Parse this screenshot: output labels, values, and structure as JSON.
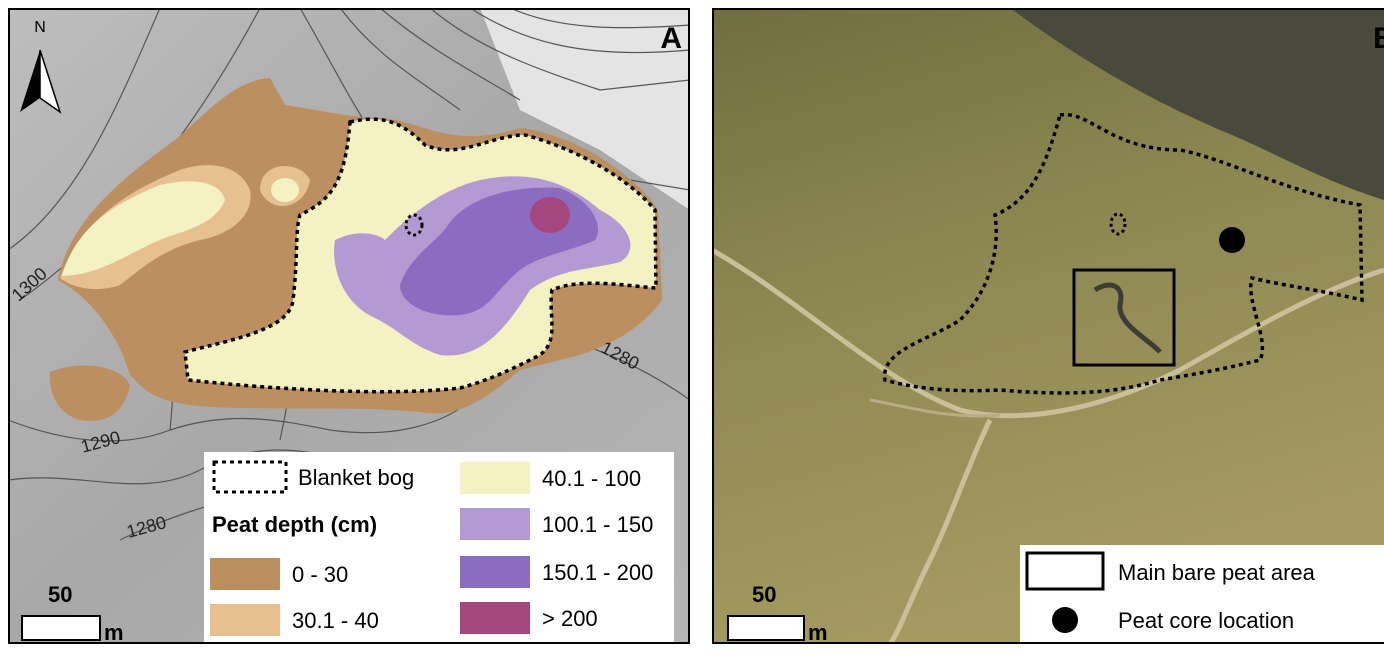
{
  "panel_a": {
    "label": "A",
    "north": "N",
    "contour_labels": [
      "1300",
      "1290",
      "1280",
      "1280"
    ],
    "legend": {
      "outline": "Blanket bog",
      "heading": "Peat depth (cm)",
      "classes": [
        {
          "label": "0 - 30",
          "color": "#bb8f60"
        },
        {
          "label": "30.1 - 40",
          "color": "#e6c08e"
        },
        {
          "label": "40.1 - 100",
          "color": "#f4f1c2"
        },
        {
          "label": "100.1 - 150",
          "color": "#b49ad2"
        },
        {
          "label": "150.1 - 200",
          "color": "#8a6cc0"
        },
        {
          "label": "> 200",
          "color": "#a5477f"
        }
      ]
    },
    "scale": {
      "value": "50",
      "unit": "m"
    }
  },
  "panel_b": {
    "label": "B",
    "legend": {
      "square": "Main bare peat area",
      "dot": "Peat core location"
    },
    "scale": {
      "value": "50",
      "unit": "m"
    }
  }
}
